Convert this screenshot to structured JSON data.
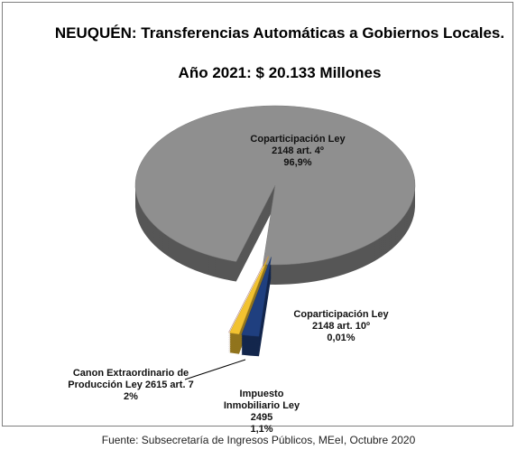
{
  "chart_data": {
    "type": "pie",
    "title": "NEUQUÉN: Transferencias Automáticas a Gobiernos Locales.",
    "subtitle": "Año 2021: $ 20.133 Millones",
    "categories": [
      "Coparticipación Ley 2148 art. 4º",
      "Coparticipación Ley 2148 art. 10º",
      "Impuesto Inmobiliario Ley 2495",
      "Canon Extraordinario de Producción Ley 2615 art. 7"
    ],
    "values": [
      96.9,
      0.01,
      1.1,
      2
    ],
    "value_labels": [
      "96,9%",
      "0,01%",
      "1,1%",
      "2%"
    ],
    "colors": [
      "#8f8f8f",
      "#d8a0a0",
      "#f2c230",
      "#1f3f7f"
    ],
    "source": "Fuente: Subsecretaría de Ingresos Públicos, MEeI, Octubre 2020"
  }
}
